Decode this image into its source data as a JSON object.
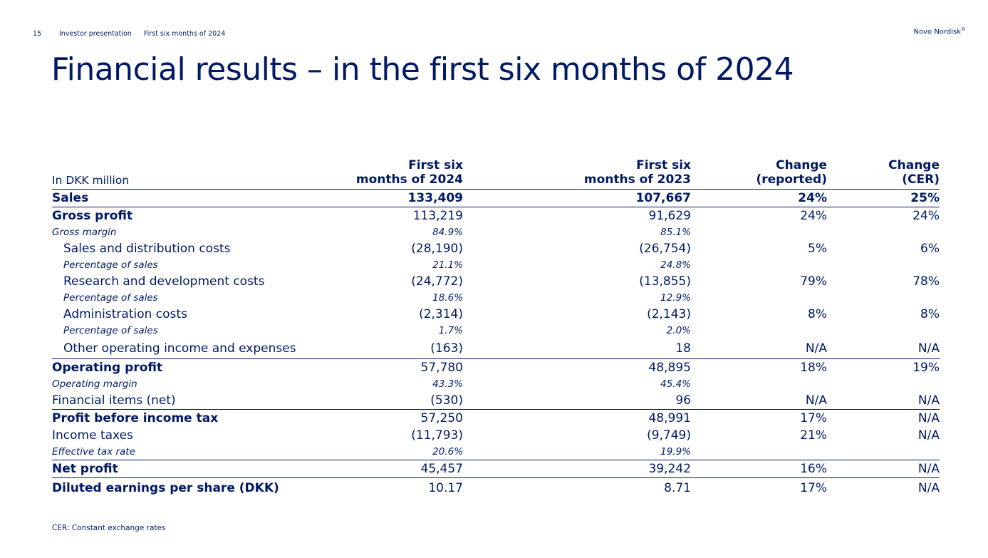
{
  "header": {
    "page_number": "15",
    "breadcrumb_1": "Investor presentation",
    "breadcrumb_2": "First six months of 2024",
    "brand": "Novo Nordisk",
    "brand_mark": "®"
  },
  "title": "Financial results – in the first six months of 2024",
  "table": {
    "unit_label": "In DKK million",
    "col1": [
      "First six",
      "months of 2024"
    ],
    "col2": [
      "First six",
      "months of 2023"
    ],
    "col3": [
      "Change",
      "(reported)"
    ],
    "col4": [
      "Change",
      "(CER)"
    ],
    "rows": [
      {
        "label": "Sales",
        "v2024": "133,409",
        "v2023": "107,667",
        "chg_rep": "24%",
        "chg_cer": "25%"
      },
      {
        "label": "Gross profit",
        "v2024": "113,219",
        "v2023": "91,629",
        "chg_rep": "24%",
        "chg_cer": "24%"
      },
      {
        "label": "Gross margin",
        "v2024": "84.9%",
        "v2023": "85.1%",
        "chg_rep": "",
        "chg_cer": ""
      },
      {
        "label": "Sales and distribution costs",
        "v2024": "(28,190)",
        "v2023": "(26,754)",
        "chg_rep": "5%",
        "chg_cer": "6%"
      },
      {
        "label": "Percentage of sales",
        "v2024": "21.1%",
        "v2023": "24.8%",
        "chg_rep": "",
        "chg_cer": ""
      },
      {
        "label": "Research and development costs",
        "v2024": "(24,772)",
        "v2023": "(13,855)",
        "chg_rep": "79%",
        "chg_cer": "78%"
      },
      {
        "label": "Percentage of sales",
        "v2024": "18.6%",
        "v2023": "12.9%",
        "chg_rep": "",
        "chg_cer": ""
      },
      {
        "label": "Administration costs",
        "v2024": "(2,314)",
        "v2023": "(2,143)",
        "chg_rep": "8%",
        "chg_cer": "8%"
      },
      {
        "label": "Percentage of sales",
        "v2024": "1.7%",
        "v2023": "2.0%",
        "chg_rep": "",
        "chg_cer": ""
      },
      {
        "label": "Other operating income and expenses",
        "v2024": "(163)",
        "v2023": "18",
        "chg_rep": "N/A",
        "chg_cer": "N/A"
      },
      {
        "label": "Operating profit",
        "v2024": "57,780",
        "v2023": "48,895",
        "chg_rep": "18%",
        "chg_cer": "19%"
      },
      {
        "label": "Operating margin",
        "v2024": "43.3%",
        "v2023": "45.4%",
        "chg_rep": "",
        "chg_cer": ""
      },
      {
        "label": "Financial items (net)",
        "v2024": "(530)",
        "v2023": "96",
        "chg_rep": "N/A",
        "chg_cer": "N/A"
      },
      {
        "label": "Profit before income tax",
        "v2024": "57,250",
        "v2023": "48,991",
        "chg_rep": "17%",
        "chg_cer": "N/A"
      },
      {
        "label": "Income taxes",
        "v2024": "(11,793)",
        "v2023": "(9,749)",
        "chg_rep": "21%",
        "chg_cer": "N/A"
      },
      {
        "label": "Effective tax rate",
        "v2024": "20.6%",
        "v2023": "19.9%",
        "chg_rep": "",
        "chg_cer": ""
      },
      {
        "label": "Net profit",
        "v2024": "45,457",
        "v2023": "39,242",
        "chg_rep": "16%",
        "chg_cer": "N/A"
      },
      {
        "label": "Diluted earnings per share (DKK)",
        "v2024": "10.17",
        "v2023": "8.71",
        "chg_rep": "17%",
        "chg_cer": "N/A"
      }
    ]
  },
  "footnote": "CER: Constant exchange rates",
  "colors": {
    "text": "#001965",
    "background": "#ffffff"
  }
}
